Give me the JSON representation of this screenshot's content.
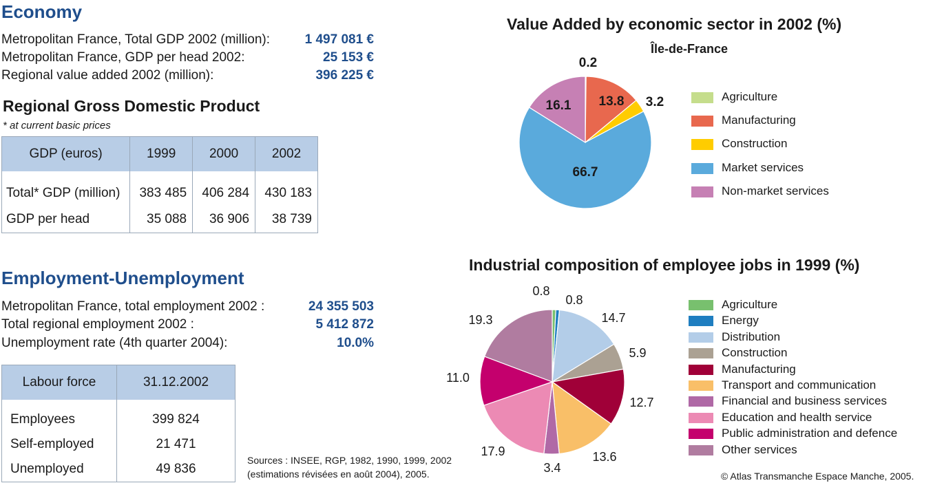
{
  "economy": {
    "title": "Economy",
    "rows": [
      {
        "label": "Metropolitan France, Total GDP 2002 (million):",
        "value": "1 497 081 €"
      },
      {
        "label": "Metropolitan France, GDP per head 2002:",
        "value": "25 153 €"
      },
      {
        "label": "Regional value added 2002 (million):",
        "value": "396 225 €"
      }
    ]
  },
  "gdp": {
    "title": "Regional Gross Domestic Product",
    "subtitle": "* at current basic prices",
    "headers": [
      "GDP (euros)",
      "1999",
      "2000",
      "2002"
    ],
    "rows": [
      [
        "Total* GDP (million)",
        "383 485",
        "406 284",
        "430 183"
      ],
      [
        "GDP per head",
        "35 088",
        "36 906",
        "38 739"
      ]
    ]
  },
  "employment": {
    "title": "Employment-Unemployment",
    "rows": [
      {
        "label": "Metropolitan France, total employment 2002 :",
        "value": "24 355 503"
      },
      {
        "label": "Total regional employment 2002 :",
        "value": "5 412 872"
      },
      {
        "label": "Unemployment rate (4th quarter 2004):",
        "value": "10.0%"
      }
    ]
  },
  "labour": {
    "headers": [
      "Labour force",
      "31.12.2002"
    ],
    "rows": [
      [
        "Employees",
        "399 824"
      ],
      [
        "Self-employed",
        "21 471"
      ],
      [
        "Unemployed",
        "49 836"
      ]
    ]
  },
  "sources": {
    "line1": "Sources : INSEE, RGP, 1982, 1990, 1999, 2002",
    "line2": "(estimations révisées en août 2004), 2005."
  },
  "copyright": "© Atlas Transmanche Espace Manche, 2005.",
  "chart_data": [
    {
      "type": "pie",
      "title": "Value Added by economic sector in 2002 (%)",
      "subtitle": "Île-de-France",
      "categories": [
        "Agriculture",
        "Manufacturing",
        "Construction",
        "Market services",
        "Non-market services"
      ],
      "values": [
        0.2,
        13.8,
        3.2,
        66.7,
        16.1
      ],
      "value_labels": [
        "0.2",
        "13.8",
        "3.2",
        "66.7",
        "16.1"
      ],
      "colors": [
        "#c5dd8c",
        "#e8684e",
        "#ffcc00",
        "#5aaadc",
        "#c680b4"
      ],
      "legend": "right"
    },
    {
      "type": "pie",
      "title": "Industrial composition of employee jobs in 1999 (%)",
      "categories": [
        "Agriculture",
        "Energy",
        "Distribution",
        "Construction",
        "Manufacturing",
        "Transport and communication",
        "Financial and business services",
        "Education and health service",
        "Public administration and defence",
        "Other services"
      ],
      "values": [
        0.8,
        0.8,
        14.7,
        5.9,
        12.7,
        13.6,
        3.4,
        17.9,
        11.0,
        19.3
      ],
      "value_labels": [
        "0.8",
        "0.8",
        "14.7",
        "5.9",
        "12.7",
        "13.6",
        "3.4",
        "17.9",
        "11.0",
        "19.3"
      ],
      "colors": [
        "#78c06e",
        "#1f7ec0",
        "#b3cde8",
        "#aba193",
        "#a00038",
        "#f9bf68",
        "#b069a6",
        "#ec8ab4",
        "#c4006d",
        "#b07ca0"
      ],
      "legend": "right"
    }
  ]
}
